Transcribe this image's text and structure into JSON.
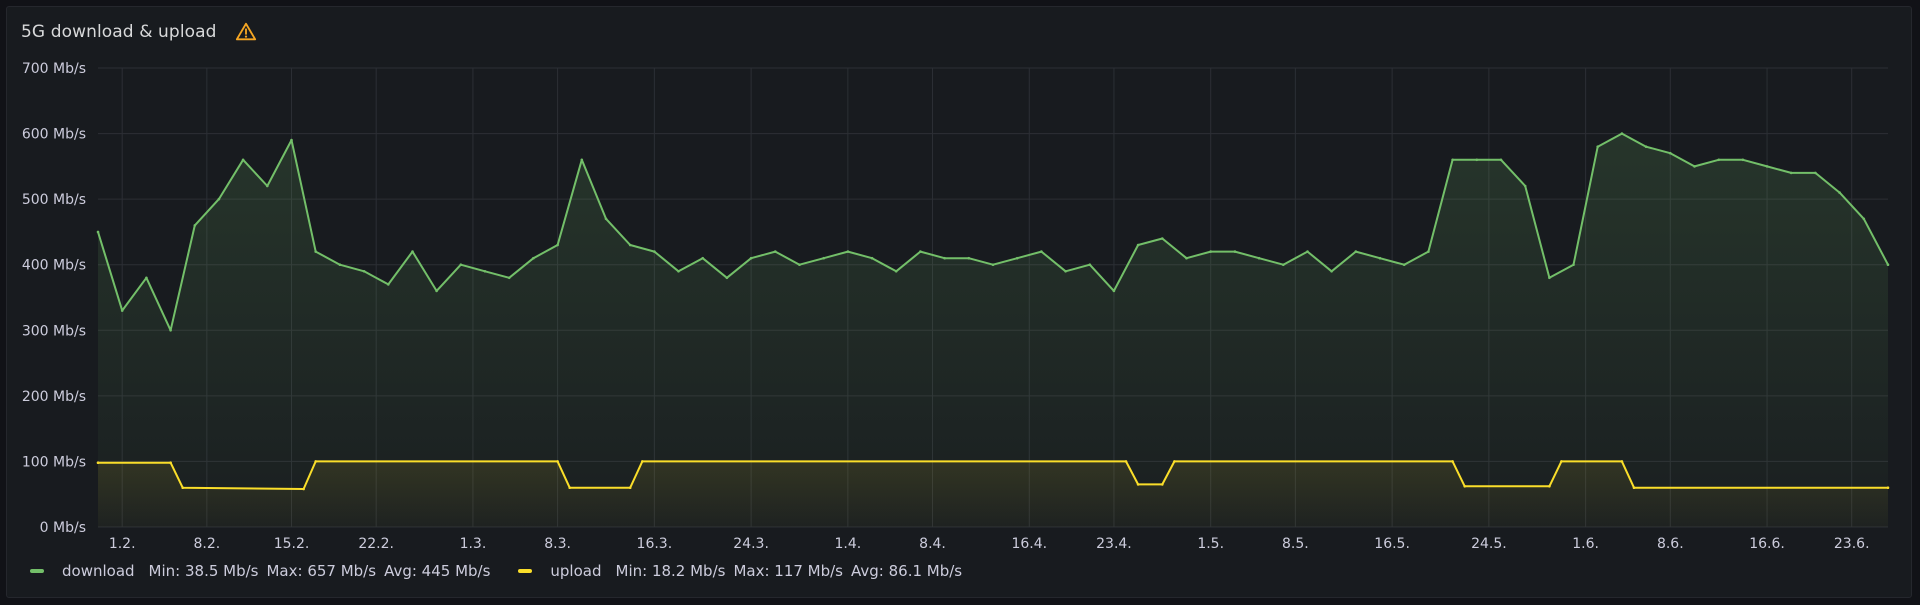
{
  "panel": {
    "title": "5G download & upload",
    "warning_icon": "warning-triangle-icon"
  },
  "colors": {
    "download": "#73bf69",
    "upload": "#fade2a",
    "grid": "#2c2f35",
    "axis_text": "#ccccdc",
    "background": "#181b1f"
  },
  "legend": [
    {
      "name": "download",
      "min": "Min: 38.5 Mb/s",
      "max": "Max: 657 Mb/s",
      "avg": "Avg: 445 Mb/s"
    },
    {
      "name": "upload",
      "min": "Min: 18.2 Mb/s",
      "max": "Max: 117 Mb/s",
      "avg": "Avg: 86.1 Mb/s"
    }
  ],
  "chart_data": {
    "type": "line",
    "title": "5G download & upload",
    "ylim": [
      0,
      700
    ],
    "yticks": [
      0,
      100,
      200,
      300,
      400,
      500,
      600,
      700
    ],
    "ytick_labels": [
      "0 Mb/s",
      "100 Mb/s",
      "200 Mb/s",
      "300 Mb/s",
      "400 Mb/s",
      "500 Mb/s",
      "600 Mb/s",
      "700 Mb/s"
    ],
    "xlim": [
      "2024-01-30",
      "2024-06-26"
    ],
    "xticks": [
      "2024-02-01",
      "2024-02-08",
      "2024-02-15",
      "2024-02-22",
      "2024-03-01",
      "2024-03-08",
      "2024-03-16",
      "2024-03-24",
      "2024-04-01",
      "2024-04-08",
      "2024-04-16",
      "2024-04-23",
      "2024-05-01",
      "2024-05-08",
      "2024-05-16",
      "2024-05-24",
      "2024-06-01",
      "2024-06-08",
      "2024-06-16",
      "2024-06-23"
    ],
    "xtick_labels": [
      "1.2.",
      "8.2.",
      "15.2.",
      "22.2.",
      "1.3.",
      "8.3.",
      "16.3.",
      "24.3.",
      "1.4.",
      "8.4.",
      "16.4.",
      "23.4.",
      "1.5.",
      "8.5.",
      "16.5.",
      "24.5.",
      "1.6.",
      "8.6.",
      "16.6.",
      "23.6."
    ],
    "grid": true,
    "legend_position": "bottom-left",
    "series": [
      {
        "name": "download",
        "x": [
          "2024-01-30",
          "2024-02-01",
          "2024-02-03",
          "2024-02-05",
          "2024-02-07",
          "2024-02-09",
          "2024-02-11",
          "2024-02-13",
          "2024-02-15",
          "2024-02-17",
          "2024-02-19",
          "2024-02-21",
          "2024-02-23",
          "2024-02-25",
          "2024-02-27",
          "2024-02-29",
          "2024-03-02",
          "2024-03-04",
          "2024-03-06",
          "2024-03-08",
          "2024-03-10",
          "2024-03-12",
          "2024-03-14",
          "2024-03-16",
          "2024-03-18",
          "2024-03-20",
          "2024-03-22",
          "2024-03-24",
          "2024-03-26",
          "2024-03-28",
          "2024-03-30",
          "2024-04-01",
          "2024-04-03",
          "2024-04-05",
          "2024-04-07",
          "2024-04-09",
          "2024-04-11",
          "2024-04-13",
          "2024-04-15",
          "2024-04-17",
          "2024-04-19",
          "2024-04-21",
          "2024-04-23",
          "2024-04-25",
          "2024-04-27",
          "2024-04-29",
          "2024-05-01",
          "2024-05-03",
          "2024-05-05",
          "2024-05-07",
          "2024-05-09",
          "2024-05-11",
          "2024-05-13",
          "2024-05-15",
          "2024-05-17",
          "2024-05-19",
          "2024-05-21",
          "2024-05-23",
          "2024-05-25",
          "2024-05-27",
          "2024-05-29",
          "2024-05-31",
          "2024-06-02",
          "2024-06-04",
          "2024-06-06",
          "2024-06-08",
          "2024-06-10",
          "2024-06-12",
          "2024-06-14",
          "2024-06-16",
          "2024-06-18",
          "2024-06-20",
          "2024-06-22",
          "2024-06-24",
          "2024-06-26"
        ],
        "values": [
          450,
          330,
          380,
          300,
          460,
          500,
          560,
          520,
          590,
          420,
          400,
          390,
          370,
          420,
          360,
          400,
          390,
          380,
          410,
          430,
          560,
          470,
          430,
          420,
          390,
          410,
          380,
          410,
          420,
          400,
          410,
          420,
          410,
          390,
          420,
          410,
          410,
          400,
          410,
          420,
          390,
          400,
          360,
          430,
          440,
          410,
          420,
          420,
          410,
          400,
          420,
          390,
          420,
          410,
          400,
          420,
          560,
          560,
          560,
          520,
          380,
          400,
          580,
          600,
          580,
          570,
          550,
          560,
          560,
          550,
          540,
          540,
          510,
          470,
          400
        ]
      },
      {
        "name": "upload",
        "x": [
          "2024-01-30",
          "2024-02-05",
          "2024-02-06",
          "2024-02-16",
          "2024-02-17",
          "2024-03-08",
          "2024-03-09",
          "2024-03-14",
          "2024-03-15",
          "2024-04-24",
          "2024-04-25",
          "2024-04-27",
          "2024-04-28",
          "2024-05-21",
          "2024-05-22",
          "2024-05-29",
          "2024-05-30",
          "2024-06-04",
          "2024-06-05",
          "2024-06-26"
        ],
        "values": [
          98,
          98,
          60,
          58,
          100,
          100,
          60,
          60,
          100,
          100,
          65,
          65,
          100,
          100,
          62,
          62,
          100,
          100,
          60,
          60
        ]
      }
    ]
  }
}
